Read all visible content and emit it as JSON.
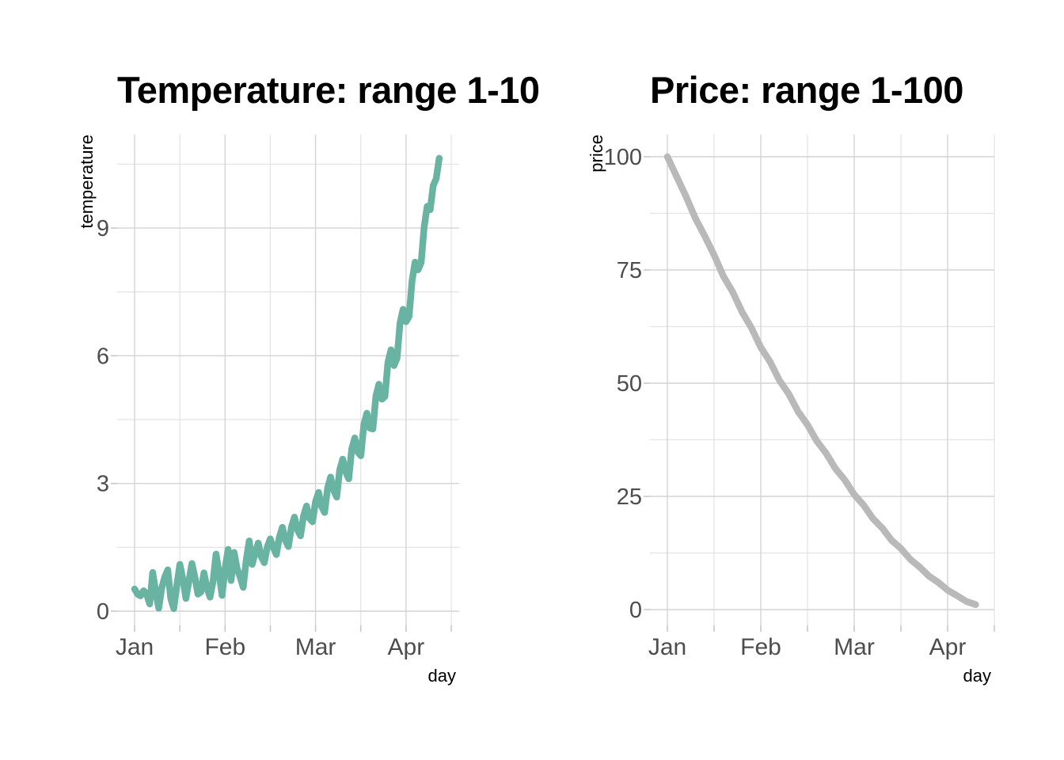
{
  "page": {
    "background": "#ffffff"
  },
  "style": {
    "grid_major_color": "#d4d4d4",
    "grid_minor_color": "#e3e3e3",
    "tick_mark_color": "#c8c8c8",
    "tick_label_color": "#4d4d4d",
    "title_color": "#000000",
    "axis_title_color": "#000000"
  },
  "chart_data": [
    {
      "type": "line",
      "title": "Temperature: range 1-10",
      "xlabel": "day",
      "ylabel": "temperature",
      "x_tick_labels": [
        "Jan",
        "Feb",
        "Mar",
        "Apr"
      ],
      "y_ticks": [
        0,
        3,
        6,
        9
      ],
      "y_minor": [
        1.5,
        4.5,
        7.5,
        10.5
      ],
      "ylim": [
        -0.5,
        11.2
      ],
      "grid": true,
      "legend": "none",
      "line_color": "#69b3a2",
      "line_width": 8.5,
      "series": [
        {
          "name": "temperature",
          "x": [
            0,
            1,
            2,
            3,
            4,
            5,
            6,
            7,
            8,
            9,
            10,
            11,
            12,
            13,
            14,
            15,
            16,
            17,
            18,
            19,
            20,
            21,
            22,
            23,
            24,
            25,
            26,
            27,
            28,
            29,
            30,
            31,
            32,
            33,
            34,
            35,
            36,
            37,
            38,
            39,
            40,
            41,
            42,
            43,
            44,
            45,
            46,
            47,
            48,
            49,
            50,
            51,
            52,
            53,
            54,
            55,
            56,
            57,
            58,
            59,
            60,
            61,
            62,
            63,
            64,
            65,
            66,
            67,
            68,
            69,
            70,
            71,
            72,
            73,
            74,
            75,
            76,
            77,
            78,
            79,
            80,
            81,
            82,
            83,
            84,
            85,
            86,
            87,
            88,
            89,
            90,
            91,
            92,
            93,
            94,
            95,
            96,
            97,
            98,
            99,
            100,
            101
          ],
          "values": [
            0.52,
            0.4,
            0.36,
            0.48,
            0.4,
            0.17,
            0.91,
            0.45,
            0.07,
            0.55,
            0.8,
            0.97,
            0.3,
            0.06,
            0.6,
            1.1,
            0.75,
            0.3,
            0.7,
            1.12,
            0.8,
            0.4,
            0.45,
            0.9,
            0.55,
            0.33,
            0.7,
            1.34,
            0.9,
            0.37,
            1.0,
            1.45,
            0.72,
            1.38,
            1.0,
            0.8,
            0.56,
            1.2,
            1.65,
            1.1,
            1.38,
            1.6,
            1.28,
            1.14,
            1.51,
            1.7,
            1.49,
            1.33,
            1.74,
            1.97,
            1.66,
            1.52,
            1.97,
            2.21,
            1.91,
            1.77,
            2.24,
            2.47,
            2.18,
            2.1,
            2.58,
            2.79,
            2.46,
            2.32,
            2.89,
            3.15,
            2.84,
            2.68,
            3.32,
            3.57,
            3.27,
            3.11,
            3.81,
            4.07,
            3.74,
            3.65,
            4.38,
            4.65,
            4.3,
            4.28,
            5.05,
            5.33,
            4.98,
            5.04,
            5.84,
            6.14,
            5.77,
            5.94,
            6.77,
            7.09,
            6.8,
            6.92,
            7.76,
            8.2,
            8.02,
            8.19,
            9.03,
            9.51,
            9.43,
            10.0,
            10.16,
            10.64
          ]
        }
      ]
    },
    {
      "type": "line",
      "title": "Price: range 1-100",
      "xlabel": "day",
      "ylabel": "price",
      "x_tick_labels": [
        "Jan",
        "Feb",
        "Mar",
        "Apr"
      ],
      "y_ticks": [
        0,
        25,
        50,
        75,
        100
      ],
      "y_minor": [
        12.5,
        37.5,
        62.5,
        87.5
      ],
      "ylim": [
        -4,
        105
      ],
      "grid": true,
      "legend": "none",
      "line_color": "#b9b9b9",
      "line_width": 8.5,
      "series": [
        {
          "name": "price",
          "x": [
            0,
            3,
            6,
            9,
            12,
            15,
            18,
            21,
            24,
            27,
            30,
            33,
            36,
            39,
            42,
            45,
            48,
            51,
            54,
            57,
            60,
            63,
            66,
            69,
            72,
            75,
            78,
            81,
            84,
            87,
            90,
            93,
            96,
            99
          ],
          "values": [
            100.0,
            95.6,
            91.2,
            86.4,
            82.5,
            78.3,
            73.6,
            70.1,
            65.7,
            62.2,
            57.9,
            54.7,
            50.6,
            47.6,
            43.7,
            40.8,
            37.2,
            34.5,
            31.1,
            28.6,
            25.4,
            23.1,
            20.1,
            18.0,
            15.3,
            13.5,
            11.1,
            9.4,
            7.4,
            6.0,
            4.3,
            3.1,
            1.8,
            1.1
          ]
        }
      ]
    }
  ]
}
